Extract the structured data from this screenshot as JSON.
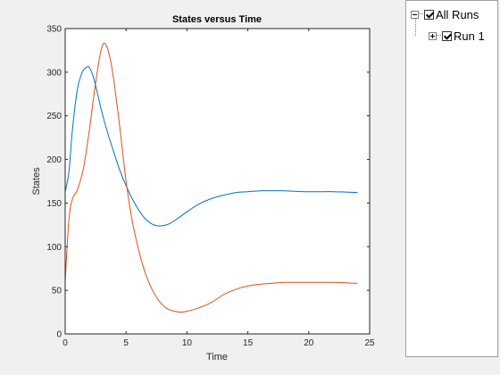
{
  "chart_data": {
    "type": "line",
    "title": "States versus Time",
    "xlabel": "Time",
    "ylabel": "States",
    "xlim": [
      0,
      25
    ],
    "ylim": [
      0,
      350
    ],
    "xticks": [
      0,
      5,
      10,
      15,
      20,
      25
    ],
    "yticks": [
      0,
      50,
      100,
      150,
      200,
      250,
      300,
      350
    ],
    "grid": false,
    "series": [
      {
        "color": "#0072bd",
        "x": [
          0,
          0.3,
          0.6,
          1.0,
          1.4,
          1.8,
          2.0,
          2.3,
          2.7,
          3.0,
          3.5,
          4.0,
          4.5,
          5.0,
          5.5,
          6.0,
          6.5,
          7.0,
          7.5,
          8.0,
          8.5,
          9.0,
          10.0,
          11.0,
          12.0,
          13.0,
          14.0,
          15.0,
          16.0,
          17.0,
          18.0,
          20.0,
          22.0,
          24.0
        ],
        "y": [
          163,
          185,
          235,
          280,
          300,
          306,
          305,
          295,
          273,
          255,
          230,
          208,
          187,
          170,
          155,
          143,
          133,
          127,
          124,
          124,
          126,
          130,
          140,
          149,
          155,
          159,
          162,
          163,
          164,
          164,
          164,
          163,
          163,
          162
        ]
      },
      {
        "color": "#d95319",
        "x": [
          0,
          0.3,
          0.6,
          1.0,
          1.5,
          2.0,
          2.4,
          2.8,
          3.1,
          3.4,
          3.7,
          4.0,
          4.5,
          5.0,
          5.5,
          6.0,
          6.5,
          7.0,
          7.5,
          8.0,
          8.5,
          9.0,
          9.5,
          10.0,
          11.0,
          12.0,
          13.0,
          14.0,
          15.0,
          16.0,
          17.0,
          18.0,
          20.0,
          22.0,
          24.0
        ],
        "y": [
          60,
          130,
          155,
          165,
          190,
          235,
          278,
          315,
          332,
          330,
          315,
          290,
          235,
          175,
          130,
          98,
          73,
          55,
          42,
          33,
          28,
          26,
          25,
          26,
          30,
          36,
          45,
          51,
          55,
          57,
          58,
          59,
          59,
          59,
          58
        ]
      }
    ]
  },
  "tree": {
    "root_label": "All Runs",
    "child_label": "Run 1"
  }
}
